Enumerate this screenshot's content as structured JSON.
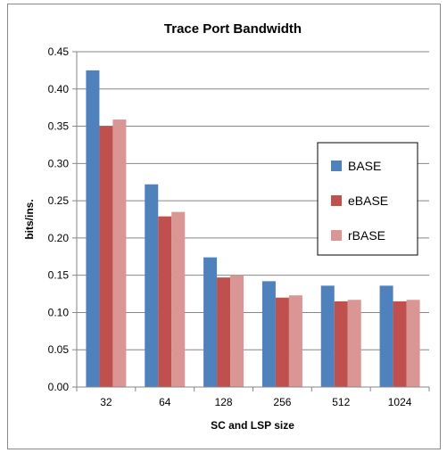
{
  "chart_data": {
    "type": "bar",
    "title": "Trace Port Bandwidth",
    "xlabel": "SC and LSP size",
    "ylabel": "bits/ins.",
    "categories": [
      "32",
      "64",
      "128",
      "256",
      "512",
      "1024"
    ],
    "series": [
      {
        "name": "BASE",
        "color": "#4f81bd",
        "values": [
          0.425,
          0.272,
          0.174,
          0.142,
          0.136,
          0.136
        ]
      },
      {
        "name": "eBASE",
        "color": "#c0504d",
        "values": [
          0.35,
          0.229,
          0.147,
          0.12,
          0.115,
          0.115
        ]
      },
      {
        "name": "rBASE",
        "color": "#d99694",
        "values": [
          0.359,
          0.235,
          0.15,
          0.123,
          0.117,
          0.117
        ]
      }
    ],
    "ylim": [
      0,
      0.45
    ],
    "yticks": [
      "0.00",
      "0.05",
      "0.10",
      "0.15",
      "0.20",
      "0.25",
      "0.30",
      "0.35",
      "0.40",
      "0.45"
    ],
    "grid": true,
    "legend_position": "right"
  }
}
